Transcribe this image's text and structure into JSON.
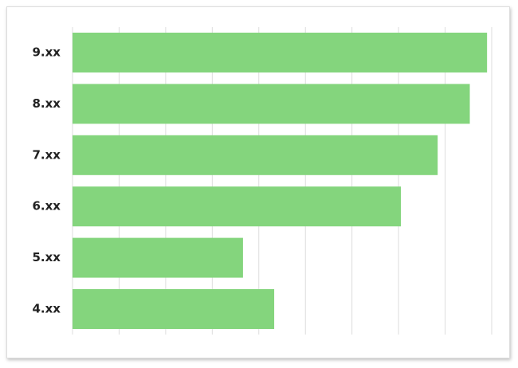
{
  "chart_data": {
    "type": "bar",
    "orientation": "horizontal",
    "categories": [
      "9.xx",
      "8.xx",
      "7.xx",
      "6.xx",
      "5.xx",
      "4.xx"
    ],
    "values": [
      8.9,
      8.53,
      7.84,
      7.05,
      3.66,
      4.33
    ],
    "color": "#84d57d",
    "xlim": [
      0,
      9
    ],
    "xticks": [
      0,
      1,
      2,
      3,
      4,
      5,
      6,
      7,
      8,
      9
    ],
    "grid": true
  }
}
